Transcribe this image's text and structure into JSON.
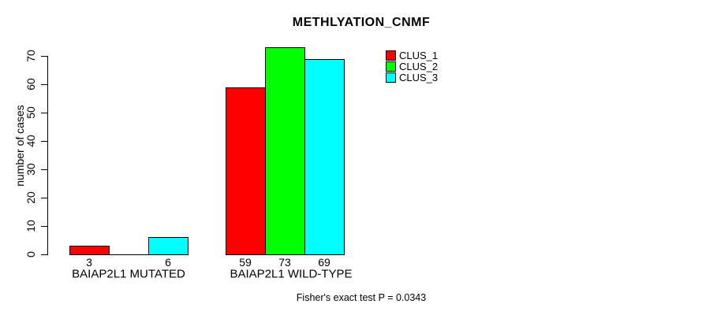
{
  "chart_data": {
    "type": "bar",
    "title": "METHLYATION_CNMF",
    "ylabel": "number of cases",
    "xlabel": "",
    "ylim": [
      0,
      70
    ],
    "yticks": [
      0,
      10,
      20,
      30,
      40,
      50,
      60,
      70
    ],
    "categories": [
      "BAIAP2L1 MUTATED",
      "BAIAP2L1 WILD-TYPE"
    ],
    "series": [
      {
        "name": "CLUS_1",
        "color": "#ff0000",
        "values": [
          3,
          59
        ]
      },
      {
        "name": "CLUS_2",
        "color": "#00ff00",
        "values": [
          0,
          73
        ]
      },
      {
        "name": "CLUS_3",
        "color": "#00ffff",
        "values": [
          6,
          69
        ]
      }
    ],
    "value_labels": [
      [
        "3",
        "",
        "6"
      ],
      [
        "59",
        "73",
        "69"
      ]
    ],
    "legend": {
      "position": "top-right",
      "entries": [
        "CLUS_1",
        "CLUS_2",
        "CLUS_3"
      ]
    },
    "annotation": "Fisher's exact test P = 0.0343",
    "grid": false,
    "colors": {
      "bar_border": "#000000",
      "axis": "#000000",
      "background": "#ffffff",
      "text": "#000000"
    }
  }
}
